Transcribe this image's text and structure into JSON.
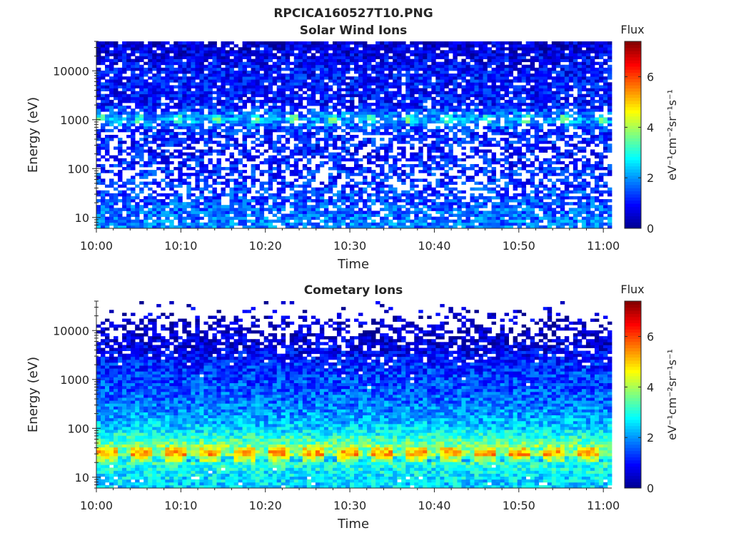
{
  "figure": {
    "title": "RPCICA160527T10.PNG"
  },
  "colorscale": [
    "#00008f",
    "#0000ff",
    "#0080ff",
    "#00ffff",
    "#80ff80",
    "#ffff00",
    "#ff8000",
    "#ff0000",
    "#800000"
  ],
  "chart_data": [
    {
      "type": "heatmap",
      "title": "Solar Wind Ions",
      "xlabel": "Time",
      "ylabel": "Energy (eV)",
      "x_ticks": [
        "10:00",
        "10:10",
        "10:20",
        "10:30",
        "10:40",
        "10:50",
        "11:00"
      ],
      "x_range": [
        "10:00",
        "11:01"
      ],
      "y_scale": "log",
      "y_ticks": [
        "10",
        "100",
        "1000",
        "10000"
      ],
      "y_range": [
        6,
        40000
      ],
      "colorbar": {
        "title": "Flux",
        "label": "eV⁻¹cm⁻²sr⁻¹s⁻¹",
        "ticks": [
          "0",
          "2",
          "4",
          "6"
        ],
        "range": [
          0,
          7.4
        ]
      },
      "energy_profile": {
        "energy_eV": [
          8,
          15,
          30,
          60,
          100,
          200,
          600,
          1000,
          2000,
          5000,
          10000,
          30000
        ],
        "typical_flux": [
          1.8,
          1.6,
          1.4,
          1.2,
          1.2,
          1.0,
          1.2,
          2.2,
          1.0,
          1.0,
          1.0,
          0.6
        ],
        "empty_fraction": [
          0.15,
          0.2,
          0.3,
          0.45,
          0.4,
          0.45,
          0.3,
          0.15,
          0.2,
          0.08,
          0.12,
          0.1
        ]
      }
    },
    {
      "type": "heatmap",
      "title": "Cometary Ions",
      "xlabel": "Time",
      "ylabel": "Energy (eV)",
      "x_ticks": [
        "10:00",
        "10:10",
        "10:20",
        "10:30",
        "10:40",
        "10:50",
        "11:00"
      ],
      "x_range": [
        "10:00",
        "11:01"
      ],
      "y_scale": "log",
      "y_ticks": [
        "10",
        "100",
        "1000",
        "10000"
      ],
      "y_range": [
        6,
        40000
      ],
      "colorbar": {
        "title": "Flux",
        "label": "eV⁻¹cm⁻²sr⁻¹s⁻¹",
        "ticks": [
          "0",
          "2",
          "4",
          "6"
        ],
        "range": [
          0,
          7.4
        ]
      },
      "energy_profile": {
        "energy_eV": [
          8,
          15,
          25,
          30,
          40,
          60,
          100,
          200,
          500,
          1000,
          2000,
          5000,
          10000,
          30000
        ],
        "typical_flux": [
          2.5,
          2.8,
          3.5,
          4.8,
          4.0,
          3.2,
          2.5,
          2.0,
          1.6,
          1.4,
          1.2,
          0.6,
          0.5,
          0.4
        ],
        "empty_fraction": [
          0.03,
          0.02,
          0.0,
          0.0,
          0.0,
          0.0,
          0.0,
          0.0,
          0.0,
          0.01,
          0.02,
          0.2,
          0.5,
          0.94
        ]
      }
    }
  ]
}
